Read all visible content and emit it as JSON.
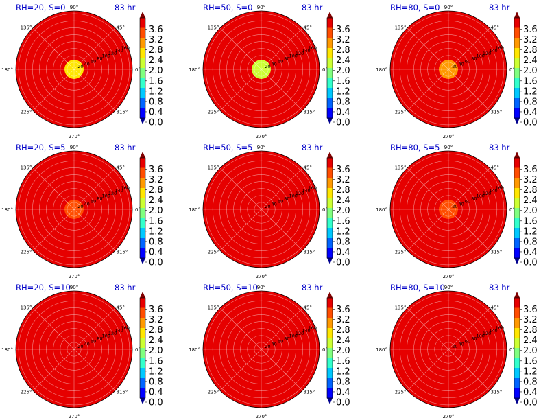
{
  "figure": {
    "time_label": "83 hr",
    "angle_labels": [
      "0°",
      "45°",
      "90°",
      "135°",
      "180°",
      "225°",
      "270°",
      "315°"
    ],
    "radial_labels": [
      "20",
      "40",
      "60",
      "80",
      "100",
      "120",
      "140",
      "160"
    ]
  },
  "colormap": {
    "name": "jet",
    "colors": [
      "#00008f",
      "#0000ff",
      "#0064ff",
      "#00c8ff",
      "#33ffcc",
      "#80ff80",
      "#ccff33",
      "#ffe600",
      "#ff9900",
      "#ff4d00",
      "#e60000",
      "#800000"
    ]
  },
  "chart_data": [
    {
      "type": "heatmap",
      "projection": "polar",
      "title": "RH=20, S=0",
      "time": "83 hr",
      "colorbar_ticks": [
        "0.0",
        "0.4",
        "0.8",
        "1.2",
        "1.6",
        "2.0",
        "2.4",
        "2.8",
        "3.2",
        "3.6"
      ],
      "clim": [
        0,
        4.0
      ],
      "rmax": 160,
      "background_value": 4.0,
      "center_value": 2.7
    },
    {
      "type": "heatmap",
      "projection": "polar",
      "title": "RH=50, S=0",
      "time": "83 hr",
      "colorbar_ticks": [
        "0.0",
        "0.4",
        "0.8",
        "1.2",
        "1.6",
        "2.0",
        "2.4",
        "2.8",
        "3.2",
        "3.6"
      ],
      "clim": [
        0,
        4.0
      ],
      "rmax": 160,
      "background_value": 4.0,
      "center_value": 2.3
    },
    {
      "type": "heatmap",
      "projection": "polar",
      "title": "RH=80, S=0",
      "time": "83 hr",
      "colorbar_ticks": [
        "0.0",
        "0.4",
        "0.8",
        "1.2",
        "1.6",
        "2.0",
        "2.4",
        "2.8",
        "3.2",
        "3.6"
      ],
      "clim": [
        0,
        4.0
      ],
      "rmax": 160,
      "background_value": 4.0,
      "center_value": 2.8
    },
    {
      "type": "heatmap",
      "projection": "polar",
      "title": "RH=20, S=5",
      "time": "83 hr",
      "colorbar_ticks": [
        "0.0",
        "0.4",
        "0.8",
        "1.2",
        "1.6",
        "2.0",
        "2.4",
        "2.8",
        "3.2",
        "3.6"
      ],
      "clim": [
        0,
        4.0
      ],
      "rmax": 160,
      "background_value": 4.0,
      "center_value": 3.5
    },
    {
      "type": "heatmap",
      "projection": "polar",
      "title": "RH=50, S=5",
      "time": "83 hr",
      "colorbar_ticks": [
        "0.0",
        "0.4",
        "0.8",
        "1.2",
        "1.6",
        "2.0",
        "2.4",
        "2.8",
        "3.2",
        "3.6"
      ],
      "clim": [
        0,
        4.0
      ],
      "rmax": 160,
      "background_value": 4.0,
      "center_value": 3.6
    },
    {
      "type": "heatmap",
      "projection": "polar",
      "title": "RH=80, S=5",
      "time": "83 hr",
      "colorbar_ticks": [
        "0.0",
        "0.4",
        "0.8",
        "1.2",
        "1.6",
        "2.0",
        "2.4",
        "2.8",
        "3.2",
        "3.6"
      ],
      "clim": [
        0,
        4.0
      ],
      "rmax": 160,
      "background_value": 4.0,
      "center_value": 3.4
    },
    {
      "type": "heatmap",
      "projection": "polar",
      "title": "RH=20, S=10",
      "time": "83 hr",
      "colorbar_ticks": [
        "0.0",
        "0.4",
        "0.8",
        "1.2",
        "1.6",
        "2.0",
        "2.4",
        "2.8",
        "3.2",
        "3.6"
      ],
      "clim": [
        0,
        4.0
      ],
      "rmax": 160,
      "background_value": 4.0,
      "center_value": 3.8
    },
    {
      "type": "heatmap",
      "projection": "polar",
      "title": "RH=50, S=10",
      "time": "83 hr",
      "colorbar_ticks": [
        "0.0",
        "0.4",
        "0.8",
        "1.2",
        "1.6",
        "2.0",
        "2.4",
        "2.8",
        "3.2",
        "3.6"
      ],
      "clim": [
        0,
        4.0
      ],
      "rmax": 160,
      "background_value": 4.0,
      "center_value": 3.9
    },
    {
      "type": "heatmap",
      "projection": "polar",
      "title": "RH=80, S=10",
      "time": "83 hr",
      "colorbar_ticks": [
        "0.0",
        "0.4",
        "0.8",
        "1.2",
        "1.6",
        "2.0",
        "2.4",
        "2.8",
        "3.2",
        "3.6"
      ],
      "clim": [
        0,
        4.0
      ],
      "rmax": 160,
      "background_value": 4.0,
      "center_value": 3.9
    }
  ]
}
